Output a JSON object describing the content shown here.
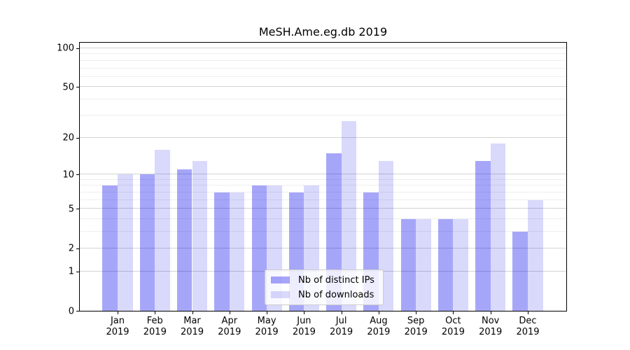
{
  "chart_data": {
    "type": "bar",
    "title": "MeSH.Ame.eg.db 2019",
    "categories": [
      "Jan 2019",
      "Feb 2019",
      "Mar 2019",
      "Apr 2019",
      "May 2019",
      "Jun 2019",
      "Jul 2019",
      "Aug 2019",
      "Sep 2019",
      "Oct 2019",
      "Nov 2019",
      "Dec 2019"
    ],
    "series": [
      {
        "name": "Nb of distinct IPs",
        "color": "#0000ee59",
        "values": [
          8,
          10,
          11,
          7,
          8,
          7,
          15,
          7,
          4,
          4,
          13,
          3
        ]
      },
      {
        "name": "Nb of downloads",
        "color": "#0000ee26",
        "values": [
          10,
          16,
          13,
          7,
          8,
          8,
          27,
          13,
          4,
          4,
          18,
          6
        ]
      }
    ],
    "xlabel": "",
    "ylabel": "",
    "yscale": "log1p",
    "ylim": [
      0,
      110
    ],
    "y_major_ticks": [
      100,
      50,
      20,
      10,
      5,
      2,
      1,
      0
    ],
    "y_minor_gridlines": [
      3,
      4,
      6,
      7,
      8,
      9,
      30,
      40,
      60,
      70,
      80,
      90
    ],
    "grid": true,
    "legend_position": "lower center"
  },
  "colors": {
    "background": "#ffffff",
    "spine": "#000000",
    "grid_major": "#d3d3d3",
    "grid_minor": "#eeeeee",
    "text": "#000000"
  }
}
